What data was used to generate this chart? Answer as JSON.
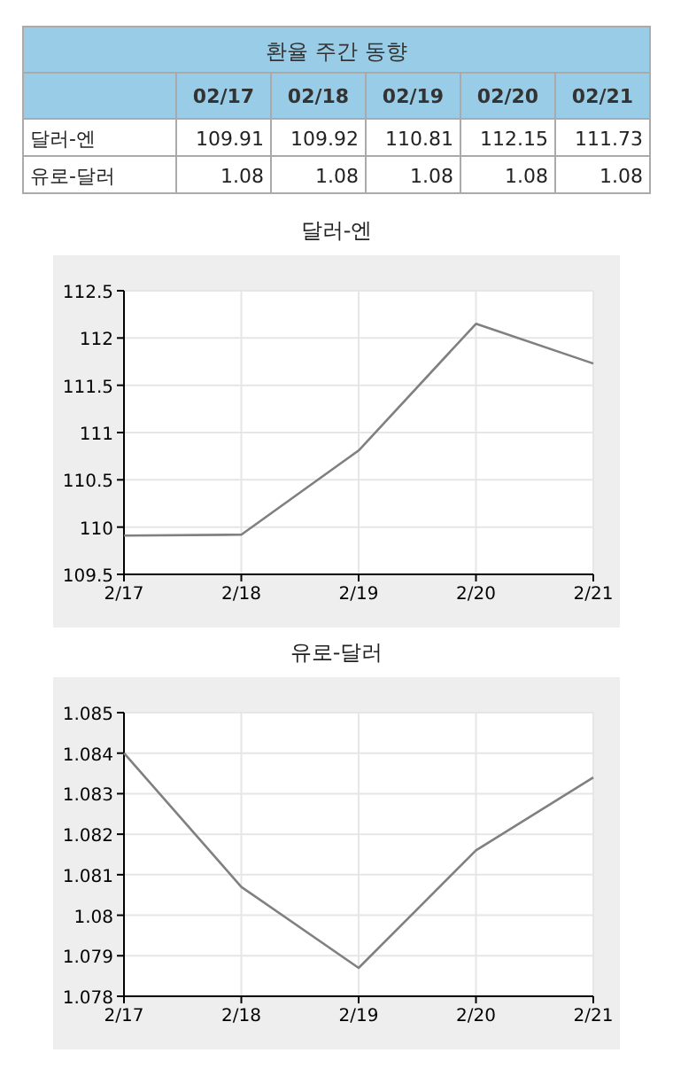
{
  "chart_data": [
    {
      "type": "other",
      "title": "환율 주간 동향",
      "categories": [
        "02/17",
        "02/18",
        "02/19",
        "02/20",
        "02/21"
      ],
      "data_labels": true,
      "series": [
        {
          "name": "달러-엔",
          "values": [
            109.91,
            109.92,
            110.81,
            112.15,
            111.73
          ]
        },
        {
          "name": "유로-달러",
          "values": [
            1.08,
            1.08,
            1.08,
            1.08,
            1.08
          ]
        }
      ]
    },
    {
      "type": "line",
      "title": "달러-엔",
      "categories": [
        "2/17",
        "2/18",
        "2/19",
        "2/20",
        "2/21"
      ],
      "ylim": [
        109.5,
        112.5
      ],
      "yticks": [
        109.5,
        110,
        110.5,
        111,
        111.5,
        112,
        112.5
      ],
      "grid": true,
      "marker": "none",
      "line_style": "solid",
      "series": [
        {
          "color": "#808080",
          "values": [
            109.91,
            109.92,
            110.81,
            112.15,
            111.73
          ]
        }
      ]
    },
    {
      "type": "line",
      "title": "유로-달러",
      "categories": [
        "2/17",
        "2/18",
        "2/19",
        "2/20",
        "2/21"
      ],
      "ylim": [
        1.078,
        1.085
      ],
      "yticks": [
        1.078,
        1.079,
        1.08,
        1.081,
        1.082,
        1.083,
        1.084,
        1.085
      ],
      "grid": true,
      "marker": "none",
      "line_style": "solid",
      "series": [
        {
          "color": "#808080",
          "values": [
            1.084,
            1.0807,
            1.0787,
            1.0816,
            1.0834
          ]
        }
      ]
    }
  ]
}
